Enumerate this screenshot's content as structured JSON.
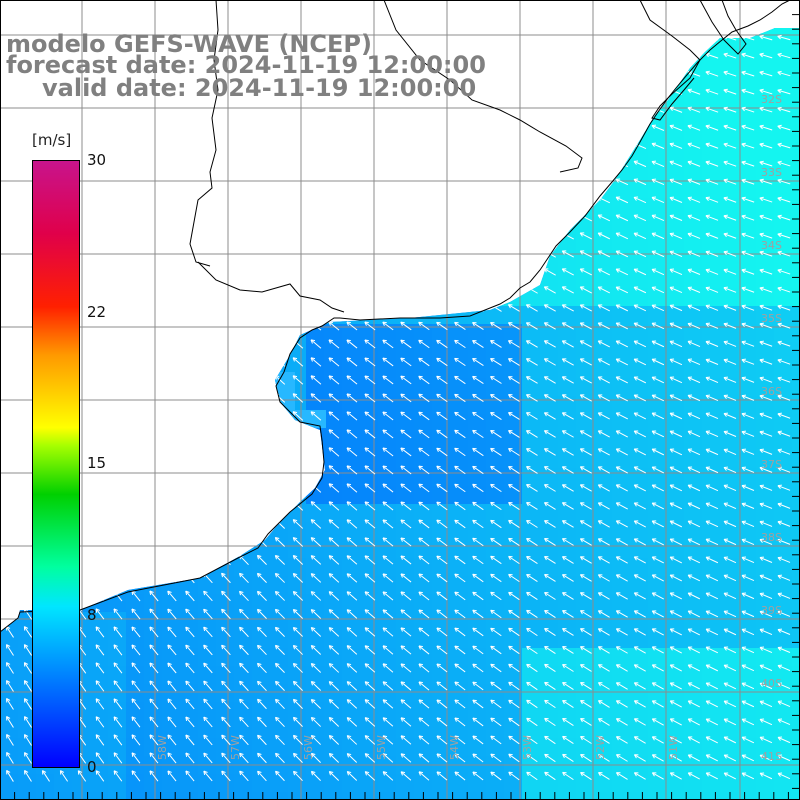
{
  "titles": {
    "model": "modelo GEFS-WAVE (NCEP)",
    "forecast": "forecast date: 2024-11-19 12:00:00",
    "valid": "valid date: 2024-11-19 12:00:00"
  },
  "colorbar": {
    "unit": "[m/s]",
    "ticks": [
      "30",
      "22",
      "15",
      "8",
      "0"
    ],
    "min": 0,
    "max": 30,
    "colors": [
      "#0000ff",
      "#0070ff",
      "#00e6ff",
      "#00ffa0",
      "#00d000",
      "#a6ff00",
      "#ffff00",
      "#ff9900",
      "#ff2000",
      "#e0004a",
      "#c8148c"
    ]
  },
  "map": {
    "land_color": "#ffffff",
    "coast_color": "#000000",
    "grid_color": "#8c8c8c",
    "arrow_color": "#ffffff",
    "lat_labels_right": [
      "32S",
      "33S",
      "34S",
      "35S",
      "36S",
      "37S",
      "38S",
      "39S",
      "40S",
      "41S"
    ],
    "lon_labels_bottom": [
      "58W",
      "57W",
      "56W",
      "55W",
      "54W",
      "53W",
      "52W",
      "51W"
    ],
    "wind_direction": "from southeast",
    "speed_range_ms": [
      2,
      9
    ]
  }
}
